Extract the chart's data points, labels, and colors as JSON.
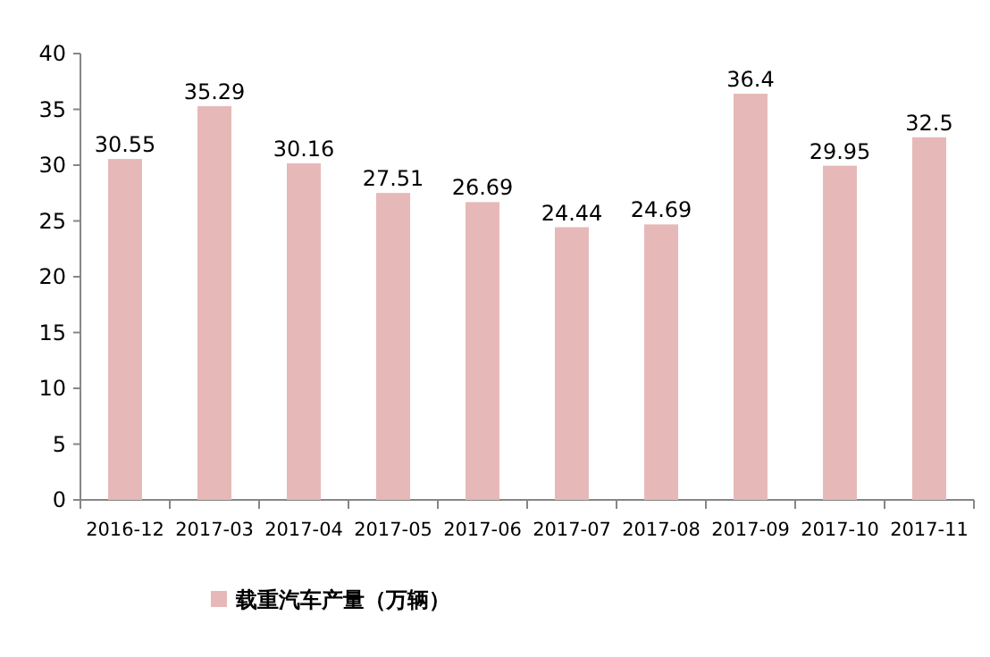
{
  "chart_data": {
    "type": "bar",
    "categories": [
      "2016-12",
      "2017-03",
      "2017-04",
      "2017-05",
      "2017-06",
      "2017-07",
      "2017-08",
      "2017-09",
      "2017-10",
      "2017-11"
    ],
    "series": [
      {
        "name": "载重汽车产量（万辆）",
        "color": "#e6b9b8",
        "values": [
          30.55,
          35.29,
          30.16,
          27.51,
          26.69,
          24.44,
          24.69,
          36.4,
          29.95,
          32.5
        ]
      }
    ],
    "ylim": [
      0,
      40
    ],
    "yticks": [
      0,
      5,
      10,
      15,
      20,
      25,
      30,
      35,
      40
    ],
    "data_labels": true,
    "legend": "bottom"
  }
}
